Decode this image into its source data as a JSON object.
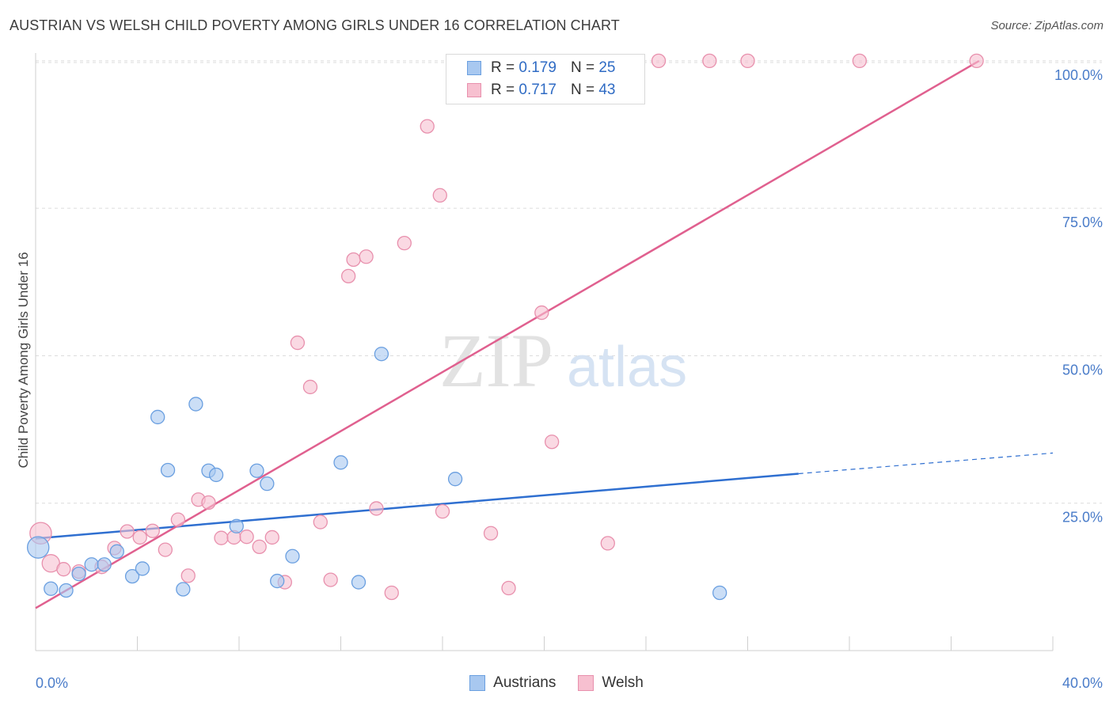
{
  "title": "AUSTRIAN VS WELSH CHILD POVERTY AMONG GIRLS UNDER 16 CORRELATION CHART",
  "source": "Source: ZipAtlas.com",
  "watermark": {
    "zip": "ZIP",
    "atlas": "atlas"
  },
  "legend_top": [
    {
      "r_label": "R =",
      "r_value": "0.179",
      "n_label": "N =",
      "n_value": "25"
    },
    {
      "r_label": "R =",
      "r_value": "0.717",
      "n_label": "N =",
      "n_value": "43"
    }
  ],
  "legend_bottom": [
    "Austrians",
    "Welsh"
  ],
  "colors": {
    "austrians_fill": "#a8c8f0",
    "austrians_stroke": "#6a9fe0",
    "austrians_line": "#2f6fd0",
    "welsh_fill": "#f7c0d0",
    "welsh_stroke": "#e890ad",
    "welsh_line": "#e0608f",
    "tick_text": "#4a7cc9",
    "grid": "#dcdcdc"
  },
  "chart_data": {
    "type": "scatter",
    "title": "AUSTRIAN VS WELSH CHILD POVERTY AMONG GIRLS UNDER 16 CORRELATION CHART",
    "xlabel": "",
    "ylabel": "Child Poverty Among Girls Under 16",
    "xlim": [
      0,
      40
    ],
    "ylim": [
      0,
      102
    ],
    "x_tick_labels": [
      "0.0%",
      "40.0%"
    ],
    "y_ticks": [
      25,
      50,
      75,
      100
    ],
    "y_tick_labels": [
      "25.0%",
      "50.0%",
      "75.0%",
      "100.0%"
    ],
    "grid": "horizontal dashed",
    "legend": "top-center and bottom-center",
    "series": [
      {
        "name": "Austrians",
        "r": 0.179,
        "n": 25,
        "points": [
          [
            0.1,
            17.5,
            1.6
          ],
          [
            0.6,
            10.5,
            1
          ],
          [
            1.2,
            10.2,
            1
          ],
          [
            1.7,
            13.0,
            1
          ],
          [
            2.2,
            14.6,
            1
          ],
          [
            2.7,
            14.6,
            1
          ],
          [
            3.2,
            16.8,
            1
          ],
          [
            3.8,
            12.6,
            1
          ],
          [
            4.2,
            13.9,
            1
          ],
          [
            4.8,
            39.6,
            1
          ],
          [
            5.2,
            30.6,
            1
          ],
          [
            5.8,
            10.4,
            1
          ],
          [
            6.3,
            41.8,
            1
          ],
          [
            6.8,
            30.5,
            1
          ],
          [
            7.1,
            29.8,
            1
          ],
          [
            7.9,
            21.1,
            1
          ],
          [
            8.7,
            30.5,
            1
          ],
          [
            9.1,
            28.3,
            1
          ],
          [
            9.5,
            11.8,
            1
          ],
          [
            10.1,
            16.0,
            1
          ],
          [
            12.0,
            31.9,
            1
          ],
          [
            12.7,
            11.6,
            1
          ],
          [
            13.6,
            50.3,
            1
          ],
          [
            16.5,
            29.1,
            1
          ],
          [
            26.9,
            9.8,
            1
          ]
        ],
        "trend": {
          "x": [
            0,
            30
          ],
          "y": [
            19.0,
            30.0
          ]
        },
        "trend_extension": {
          "x": [
            30,
            40
          ],
          "y": [
            30.0,
            33.5
          ]
        }
      },
      {
        "name": "Welsh",
        "r": 0.717,
        "n": 43,
        "points": [
          [
            0.2,
            19.9,
            1.6
          ],
          [
            0.6,
            14.8,
            1.3
          ],
          [
            1.1,
            13.8,
            1
          ],
          [
            1.7,
            13.4,
            1
          ],
          [
            2.6,
            14.2,
            1
          ],
          [
            3.1,
            17.4,
            1
          ],
          [
            3.6,
            20.2,
            1
          ],
          [
            4.1,
            19.2,
            1
          ],
          [
            4.6,
            20.3,
            1
          ],
          [
            5.1,
            17.1,
            1
          ],
          [
            5.6,
            22.2,
            1
          ],
          [
            6.0,
            12.7,
            1
          ],
          [
            6.4,
            25.6,
            1
          ],
          [
            6.8,
            25.1,
            1
          ],
          [
            7.3,
            19.1,
            1
          ],
          [
            7.8,
            19.2,
            1
          ],
          [
            8.3,
            19.3,
            1
          ],
          [
            8.8,
            17.6,
            1
          ],
          [
            9.3,
            19.2,
            1
          ],
          [
            9.8,
            11.6,
            1
          ],
          [
            10.3,
            52.2,
            1
          ],
          [
            10.8,
            44.7,
            1
          ],
          [
            11.2,
            21.8,
            1
          ],
          [
            11.6,
            12.0,
            1
          ],
          [
            12.3,
            63.5,
            1
          ],
          [
            12.5,
            66.3,
            1
          ],
          [
            13.0,
            66.8,
            1
          ],
          [
            13.4,
            24.1,
            1
          ],
          [
            14.0,
            9.8,
            1
          ],
          [
            14.5,
            69.1,
            1
          ],
          [
            15.4,
            88.9,
            1
          ],
          [
            15.9,
            77.2,
            1
          ],
          [
            16.0,
            23.6,
            1
          ],
          [
            17.9,
            19.9,
            1
          ],
          [
            18.6,
            10.6,
            1
          ],
          [
            19.9,
            57.3,
            1
          ],
          [
            20.3,
            35.4,
            1
          ],
          [
            22.5,
            18.2,
            1
          ],
          [
            24.5,
            100.0,
            1
          ],
          [
            26.5,
            100.0,
            1
          ],
          [
            32.4,
            100.0,
            1
          ],
          [
            37.0,
            100.0,
            1
          ],
          [
            28.0,
            100.0,
            1
          ]
        ],
        "trend": {
          "x": [
            0,
            37.1
          ],
          "y": [
            7.2,
            100.0
          ]
        }
      }
    ]
  }
}
